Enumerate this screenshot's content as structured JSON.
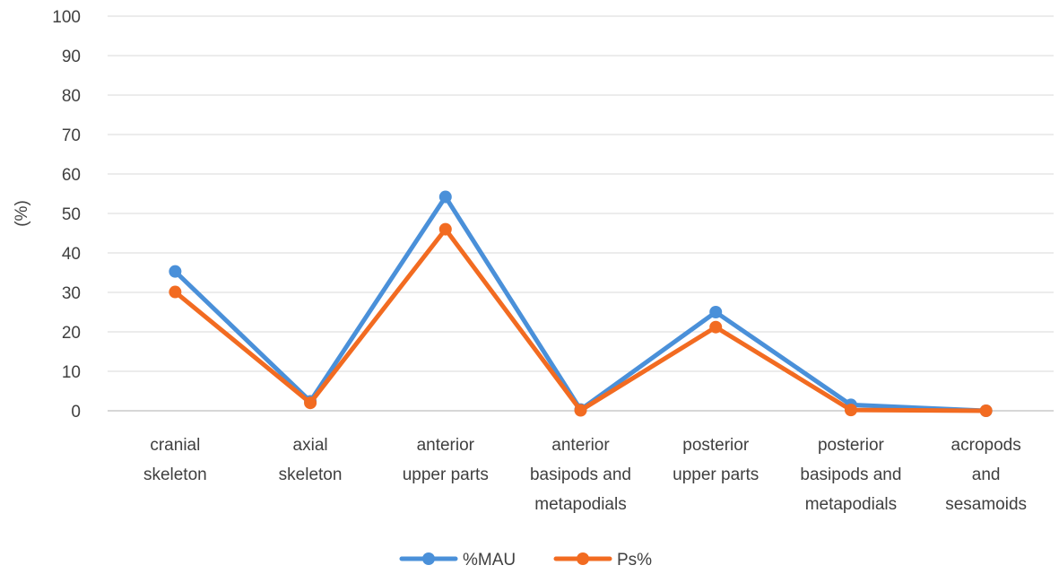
{
  "chart_data": {
    "type": "line",
    "title": "",
    "xlabel": "",
    "ylabel": "(%)",
    "ylim": [
      0,
      100
    ],
    "yticks": [
      0,
      10,
      20,
      30,
      40,
      50,
      60,
      70,
      80,
      90,
      100
    ],
    "grid": true,
    "legend_position": "bottom",
    "categories": [
      [
        "cranial",
        "skeleton"
      ],
      [
        "axial",
        "skeleton"
      ],
      [
        "anterior",
        "upper parts"
      ],
      [
        "anterior",
        "basipods and",
        "metapodials"
      ],
      [
        "posterior",
        "upper parts"
      ],
      [
        "posterior",
        "basipods and",
        "metapodials"
      ],
      [
        "acropods",
        "and",
        "sesamoids"
      ]
    ],
    "series": [
      {
        "name": "%MAU",
        "color": "#4a90d9",
        "values": [
          35.3,
          2.4,
          54.2,
          0.3,
          25.0,
          1.5,
          0.0
        ]
      },
      {
        "name": "Ps%",
        "color": "#f26b21",
        "values": [
          30.1,
          2.0,
          46.0,
          0.1,
          21.2,
          0.2,
          0.0
        ]
      }
    ]
  }
}
